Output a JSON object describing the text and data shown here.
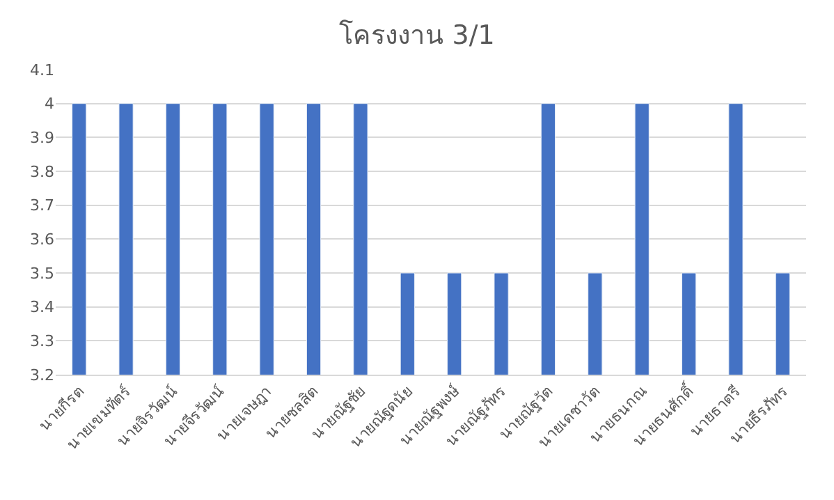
{
  "chart_data": {
    "type": "bar",
    "title": "โครงงาน 3/1",
    "categories": [
      "นายกีรต",
      "นายเขมทัตร์",
      "นายจิรวัฒน์",
      "นายจีรวัฒน์",
      "นายเจษฎา",
      "นายชลสิต",
      "นายณัฐชัย",
      "นายณัฐดนัย",
      "นายณัฐพงษ์",
      "นายณัฐภัทร",
      "นายณัฐวัต",
      "นายเดชาวัต",
      "นายธนกณ",
      "นายธนศักดิ์",
      "นายธาตรี",
      "นายธีรภัทร"
    ],
    "values": [
      4,
      4,
      4,
      4,
      4,
      4,
      4,
      3.5,
      3.5,
      3.5,
      4,
      3.5,
      4,
      3.5,
      4,
      3.5
    ],
    "color": "#4472c4",
    "ylim": [
      3.2,
      4.1
    ],
    "yticks": [
      {
        "value": 3.2,
        "label": "3.2"
      },
      {
        "value": 3.3,
        "label": "3.3"
      },
      {
        "value": 3.4,
        "label": "3.4"
      },
      {
        "value": 3.5,
        "label": "3.5"
      },
      {
        "value": 3.6,
        "label": "3.6"
      },
      {
        "value": 3.7,
        "label": "3.7"
      },
      {
        "value": 3.8,
        "label": "3.8"
      },
      {
        "value": 3.9,
        "label": "3.9"
      },
      {
        "value": 4,
        "label": "4"
      },
      {
        "value": 4.1,
        "label": "4.1"
      }
    ],
    "grid": "y"
  }
}
